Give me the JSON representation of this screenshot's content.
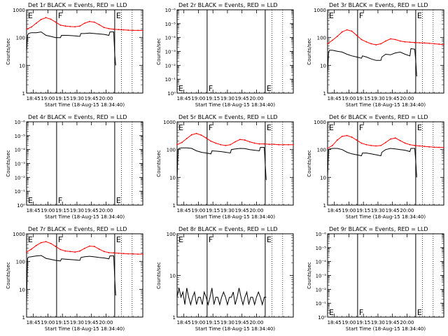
{
  "chart_data": [
    {
      "type": "line",
      "title": "Det 1r BLACK = Events, RED = LLD",
      "ylabel": "Counts/sec",
      "xlabel": "Start Time (18-Aug-15 18:34:40)",
      "y_scale": "log",
      "ylim": [
        1,
        1000
      ],
      "yticks": [
        "1",
        "10",
        "100",
        "1000"
      ],
      "xticks": [
        "18:45",
        "19:00",
        "19:15",
        "19:30",
        "19:45",
        "20:00"
      ],
      "markers": [
        "E",
        "F",
        "E"
      ],
      "series": [
        {
          "color": "#ff0000",
          "x": [
            0,
            5,
            10,
            15,
            20,
            25,
            30,
            35,
            40,
            45,
            50,
            55,
            60,
            65,
            70,
            75,
            80,
            85,
            90,
            95,
            100,
            105,
            110,
            115,
            120
          ],
          "y": [
            200,
            240,
            330,
            450,
            520,
            460,
            360,
            280,
            260,
            250,
            245,
            260,
            330,
            380,
            360,
            290,
            230,
            210,
            200,
            195,
            190,
            185,
            182,
            182,
            180
          ]
        },
        {
          "color": "#000000",
          "x": [
            0,
            1,
            2,
            5,
            10,
            15,
            20,
            25,
            30,
            35,
            36,
            40,
            45,
            50,
            55,
            56,
            60,
            65,
            70,
            75,
            80,
            85,
            86,
            90,
            91,
            92
          ],
          "y": [
            30,
            120,
            140,
            150,
            150,
            160,
            120,
            110,
            100,
            100,
            120,
            120,
            118,
            115,
            110,
            140,
            140,
            145,
            140,
            135,
            130,
            120,
            160,
            160,
            25,
            10
          ]
        }
      ]
    },
    {
      "type": "line",
      "title": "Det 2r BLACK = Events, RED = LLD",
      "ylabel": "Counts/sec",
      "xlabel": "Start Time (18-Aug-15 18:34:40)",
      "y_scale": "log",
      "ylim": [
        1,
        1000000
      ],
      "yticks": [
        "10⁰",
        "10⁻¹",
        "10⁻²",
        "10⁻³",
        "10⁻⁴",
        "10⁻⁵",
        "10⁻⁶"
      ],
      "xticks": [
        "18:45",
        "19:00",
        "19:15",
        "19:30",
        "19:45",
        "20:00"
      ],
      "markers": [
        "E",
        "F",
        "E"
      ],
      "series": []
    },
    {
      "type": "line",
      "title": "Det 3r BLACK = Events, RED = LLD",
      "ylabel": "Counts/sec",
      "xlabel": "Start Time (18-Aug-15 18:34:40)",
      "y_scale": "log",
      "ylim": [
        1,
        1000
      ],
      "yticks": [
        "1",
        "10",
        "100",
        "1000"
      ],
      "xticks": [
        "18:45",
        "19:00",
        "19:15",
        "19:30",
        "19:45",
        "20:00"
      ],
      "markers": [
        "E",
        "F",
        "E"
      ],
      "series": [
        {
          "color": "#ff0000",
          "x": [
            0,
            5,
            10,
            15,
            20,
            25,
            30,
            35,
            40,
            45,
            50,
            55,
            60,
            65,
            70,
            75,
            80,
            85,
            90,
            95,
            100,
            105,
            110,
            115,
            120
          ],
          "y": [
            60,
            80,
            110,
            160,
            190,
            170,
            120,
            85,
            70,
            60,
            55,
            60,
            75,
            90,
            85,
            75,
            70,
            68,
            66,
            65,
            64,
            62,
            60,
            58,
            56
          ]
        },
        {
          "color": "#000000",
          "x": [
            0,
            1,
            2,
            5,
            10,
            15,
            20,
            25,
            30,
            35,
            36,
            40,
            45,
            50,
            55,
            56,
            60,
            65,
            70,
            75,
            80,
            85,
            86,
            90,
            91,
            92
          ],
          "y": [
            5,
            30,
            35,
            35,
            32,
            30,
            25,
            22,
            20,
            18,
            22,
            20,
            17,
            15,
            15,
            20,
            25,
            24,
            28,
            30,
            25,
            22,
            40,
            38,
            15,
            4
          ]
        }
      ]
    },
    {
      "type": "line",
      "title": "Det 4r BLACK = Events, RED = LLD",
      "ylabel": "Counts/sec",
      "xlabel": "Start Time (18-Aug-15 18:34:40)",
      "y_scale": "log",
      "ylim": [
        1,
        1000000
      ],
      "yticks": [
        "10⁰",
        "10⁻¹",
        "10⁻²",
        "10⁻³",
        "10⁻⁴",
        "10⁻⁵",
        "10⁻⁶"
      ],
      "xticks": [
        "18:45",
        "19:00",
        "19:15",
        "19:30",
        "19:45",
        "20:00"
      ],
      "markers": [
        "E",
        "F",
        "E"
      ],
      "series": []
    },
    {
      "type": "line",
      "title": "Det 5r BLACK = Events, RED = LLD",
      "ylabel": "Counts/sec",
      "xlabel": "Start Time (18-Aug-15 18:34:40)",
      "y_scale": "log",
      "ylim": [
        1,
        1000
      ],
      "yticks": [
        "1",
        "10",
        "100",
        "1000"
      ],
      "xticks": [
        "18:45",
        "19:00",
        "19:15",
        "19:30",
        "19:45",
        "20:00"
      ],
      "markers": [
        "E",
        "F",
        "E"
      ],
      "series": [
        {
          "color": "#ff0000",
          "x": [
            0,
            5,
            10,
            15,
            20,
            25,
            30,
            35,
            40,
            45,
            50,
            55,
            60,
            65,
            70,
            75,
            80,
            85,
            90,
            95,
            100,
            105,
            110,
            115,
            120
          ],
          "y": [
            150,
            180,
            250,
            340,
            380,
            330,
            260,
            200,
            170,
            150,
            140,
            150,
            190,
            230,
            220,
            190,
            170,
            160,
            160,
            155,
            155,
            150,
            150,
            150,
            150
          ]
        },
        {
          "color": "#000000",
          "x": [
            0,
            1,
            2,
            5,
            10,
            15,
            20,
            25,
            30,
            35,
            36,
            40,
            45,
            50,
            55,
            56,
            60,
            65,
            70,
            75,
            80,
            85,
            86,
            90,
            91,
            92
          ],
          "y": [
            8,
            100,
            110,
            115,
            115,
            110,
            90,
            80,
            75,
            70,
            90,
            88,
            85,
            80,
            75,
            100,
            105,
            110,
            108,
            100,
            95,
            90,
            120,
            120,
            30,
            8
          ]
        }
      ]
    },
    {
      "type": "line",
      "title": "Det 6r BLACK = Events, RED = LLD",
      "ylabel": "Counts/sec",
      "xlabel": "Start Time (18-Aug-15 18:34:40)",
      "y_scale": "log",
      "ylim": [
        1,
        1000
      ],
      "yticks": [
        "1",
        "10",
        "100",
        "1000"
      ],
      "xticks": [
        "18:45",
        "19:00",
        "19:15",
        "19:30",
        "19:45",
        "20:00"
      ],
      "markers": [
        "E",
        "F",
        "E"
      ],
      "series": [
        {
          "color": "#ff0000",
          "x": [
            0,
            5,
            10,
            15,
            20,
            25,
            30,
            35,
            40,
            45,
            50,
            55,
            60,
            65,
            70,
            75,
            80,
            85,
            90,
            95,
            100,
            105,
            110,
            115,
            120
          ],
          "y": [
            110,
            140,
            220,
            300,
            320,
            280,
            220,
            170,
            150,
            140,
            135,
            140,
            180,
            240,
            260,
            210,
            170,
            150,
            140,
            135,
            130,
            125,
            122,
            120,
            118
          ]
        },
        {
          "color": "#000000",
          "x": [
            0,
            1,
            2,
            5,
            10,
            15,
            20,
            25,
            30,
            35,
            36,
            40,
            45,
            50,
            55,
            56,
            60,
            65,
            70,
            75,
            80,
            85,
            86,
            90,
            91,
            92
          ],
          "y": [
            10,
            100,
            105,
            110,
            110,
            100,
            80,
            70,
            65,
            60,
            75,
            75,
            70,
            65,
            60,
            80,
            100,
            110,
            105,
            100,
            95,
            85,
            110,
            110,
            40,
            10
          ]
        }
      ]
    },
    {
      "type": "line",
      "title": "Det 7r BLACK = Events, RED = LLD",
      "ylabel": "Counts/sec",
      "xlabel": "Start Time (18-Aug-15 18:34:40)",
      "y_scale": "log",
      "ylim": [
        1,
        1000
      ],
      "yticks": [
        "1",
        "10",
        "100",
        "1000"
      ],
      "xticks": [
        "18:45",
        "19:00",
        "19:15",
        "19:30",
        "19:45",
        "20:00"
      ],
      "markers": [
        "E",
        "F",
        "E"
      ],
      "series": [
        {
          "color": "#ff0000",
          "x": [
            0,
            5,
            10,
            15,
            20,
            25,
            30,
            35,
            40,
            45,
            50,
            55,
            60,
            65,
            70,
            75,
            80,
            85,
            90,
            95,
            100,
            105,
            110,
            115,
            120
          ],
          "y": [
            220,
            280,
            380,
            480,
            520,
            450,
            350,
            270,
            240,
            230,
            220,
            240,
            300,
            360,
            350,
            280,
            230,
            210,
            205,
            200,
            195,
            190,
            188,
            186,
            185
          ]
        },
        {
          "color": "#000000",
          "x": [
            0,
            1,
            2,
            5,
            10,
            15,
            20,
            25,
            30,
            35,
            36,
            40,
            45,
            50,
            55,
            56,
            60,
            65,
            70,
            75,
            80,
            85,
            86,
            90,
            91,
            92
          ],
          "y": [
            3,
            130,
            145,
            150,
            160,
            165,
            130,
            120,
            110,
            105,
            125,
            122,
            118,
            115,
            110,
            140,
            150,
            155,
            148,
            140,
            135,
            125,
            160,
            160,
            25,
            6
          ]
        }
      ]
    },
    {
      "type": "line",
      "title": "Det 8r BLACK = Events, RED = LLD",
      "ylabel": "Counts/sec",
      "xlabel": "Start Time (18-Aug-15 18:34:40)",
      "y_scale": "log",
      "ylim": [
        1,
        100
      ],
      "yticks": [
        "1",
        "10",
        "100"
      ],
      "xticks": [
        "18:45",
        "19:00",
        "19:15",
        "19:30",
        "19:45",
        "20:00"
      ],
      "markers": [
        "E",
        "F",
        "E"
      ],
      "series": [
        {
          "color": "#000000",
          "x": [
            0,
            2,
            4,
            6,
            8,
            10,
            12,
            14,
            16,
            18,
            20,
            22,
            24,
            26,
            28,
            30,
            32,
            34,
            36,
            38,
            40,
            42,
            44,
            46,
            48,
            50,
            52,
            54,
            56,
            58,
            60,
            62,
            64,
            66,
            68,
            70,
            72,
            74,
            76,
            78,
            80,
            82,
            84,
            86,
            88,
            90,
            92
          ],
          "y": [
            3,
            5,
            3,
            4,
            2,
            5,
            3,
            2,
            3,
            4,
            2,
            3,
            3,
            2,
            4,
            3,
            2,
            3,
            5,
            2,
            3,
            3,
            2,
            3,
            4,
            3,
            2,
            3,
            3,
            4,
            2,
            3,
            5,
            3,
            2,
            3,
            4,
            2,
            3,
            3,
            2,
            3,
            4,
            3,
            2,
            3,
            3
          ]
        }
      ]
    },
    {
      "type": "line",
      "title": "Det 9r BLACK = Events, RED = LLD",
      "ylabel": "Counts/sec",
      "xlabel": "Start Time (18-Aug-15 18:34:40)",
      "y_scale": "log",
      "ylim": [
        1,
        1000000
      ],
      "yticks": [
        "10⁰",
        "10⁻¹",
        "10⁻²",
        "10⁻³",
        "10⁻⁴",
        "10⁻⁵",
        "10⁻⁶"
      ],
      "xticks": [
        "18:45",
        "19:00",
        "19:15",
        "19:30",
        "19:45",
        "20:00"
      ],
      "markers": [
        "E",
        "F",
        "E"
      ],
      "series": []
    }
  ]
}
